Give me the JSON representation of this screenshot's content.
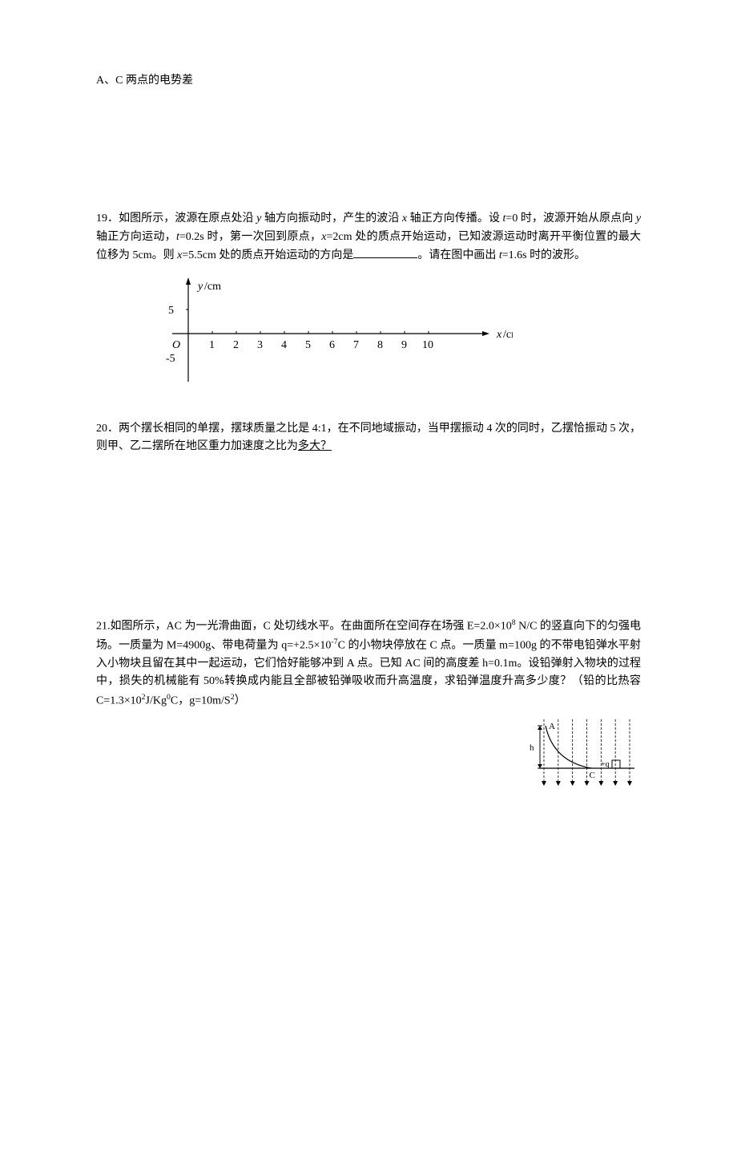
{
  "q18_fragment": {
    "text": "A、C 两点的电势差"
  },
  "q19": {
    "number": "19．",
    "text_parts": [
      "如图所示，波源在原点处沿 ",
      " 轴方向振动时，产生的波沿 ",
      " 轴正方向传播。设 ",
      "=0 时，波源开始从原点向 ",
      " 轴正方向运动，",
      "=0.2s 时，第一次回到原点，",
      "=2cm 处的质点开始运动，已知波源运动时离开平衡位置的最大位移为 5cm。则 ",
      "=5.5cm 处的质点开始运动的方向是",
      "。请在图中画出 ",
      "=1.6s 时的波形。"
    ],
    "graph": {
      "y_label": "y/cm",
      "x_label": "x/cm",
      "origin": "O",
      "y_ticks": [
        "5",
        "-5"
      ],
      "x_ticks": [
        "1",
        "2",
        "3",
        "4",
        "5",
        "6",
        "7",
        "8",
        "9",
        "10"
      ],
      "axis_color": "#000000",
      "tick_fontsize": 14,
      "label_fontsize": 14,
      "x_range": [
        0,
        10
      ],
      "y_range": [
        -5,
        5
      ],
      "tick_spacing_px": 30,
      "arrow_size": 6
    }
  },
  "q20": {
    "number": "20．",
    "text": "两个摆长相同的单摆，摆球质量之比是 4:1，在不同地域振动，当甲摆振动 4 次的同时，乙摆恰振动 5 次，则甲、乙二摆所在地区重力加速度之比为",
    "underlined": "多大？"
  },
  "q21": {
    "number": "21.",
    "text_parts": [
      "如图所示，AC 为一光滑曲面，C 处切线水平。在曲面所在空间存在场强 E=2.0×10",
      " N/C 的竖直向下的匀强电场。一质量为 M=4900g、带电荷量为 q=+2.5×10",
      "C 的小物块停放在 C 点。一质量 m=100g 的不带电铅弹水平射入小物块且留在其中一起运动，它们恰好能够冲到 A 点。已知 AC 间的高度差 h=0.1m。设铅弹射入物块的过程中，损失的机械能有 50%转换成内能且全部被铅弹吸收而升高温度，求铅弹温度升高多少度？（铅的比热容 C=1.3×10",
      "J/Kg",
      "C，g=10m/S",
      "）"
    ],
    "sup1": "8",
    "sup2": "-7",
    "sup3": "2",
    "sup4": "0",
    "sup5": "2",
    "figure": {
      "labels": {
        "A": "A",
        "C": "C",
        "h": "h",
        "q": "+q"
      },
      "line_color": "#000000",
      "block_size": 10,
      "width": 145,
      "height": 95,
      "field_line_count": 7
    }
  }
}
